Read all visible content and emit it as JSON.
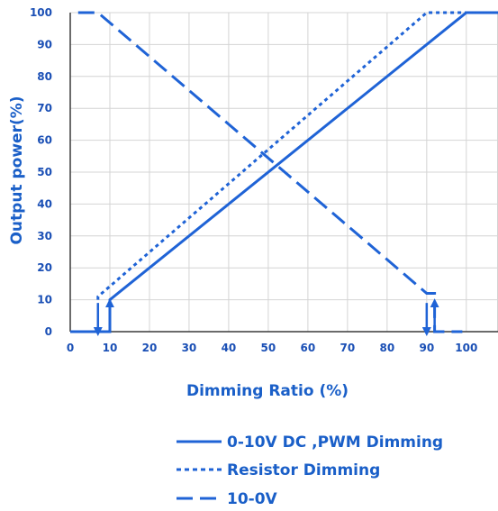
{
  "chart_data": {
    "type": "line",
    "xlabel": "Dimming Ratio (%)",
    "ylabel": "Output power(%)",
    "xlim": [
      0,
      108
    ],
    "ylim": [
      0,
      100
    ],
    "xticks": [
      0,
      10,
      20,
      30,
      40,
      50,
      60,
      70,
      80,
      90,
      100
    ],
    "yticks": [
      0,
      10,
      20,
      30,
      40,
      50,
      60,
      70,
      80,
      90,
      100
    ],
    "grid": true,
    "legend_position": "bottom",
    "colors": {
      "line": "#1f63d6",
      "text": "#1a5fc8",
      "grid": "#d4d4d4",
      "axis": "#3a3a3a"
    },
    "series": [
      {
        "name": "0-10V DC ,PWM Dimming",
        "style": "solid",
        "points": [
          [
            0,
            0
          ],
          [
            10,
            0
          ],
          [
            10,
            10
          ],
          [
            100,
            100
          ],
          [
            108,
            100
          ]
        ],
        "arrows": [
          {
            "x": 10,
            "direction": "up"
          }
        ]
      },
      {
        "name": "Resistor Dimming",
        "style": "dotted",
        "points": [
          [
            7,
            10
          ],
          [
            7,
            11
          ],
          [
            90,
            100
          ],
          [
            100,
            100
          ],
          [
            108,
            100
          ]
        ],
        "arrows": [
          {
            "x": 7,
            "direction": "down"
          }
        ]
      },
      {
        "name": "10-0V",
        "style": "dashed",
        "points": [
          [
            2,
            100
          ],
          [
            7,
            100
          ],
          [
            90,
            12
          ],
          [
            92,
            12
          ],
          [
            92,
            0
          ],
          [
            99,
            0
          ]
        ],
        "arrows": [
          {
            "x": 90,
            "direction": "down"
          },
          {
            "x": 92,
            "direction": "up"
          }
        ]
      }
    ]
  }
}
